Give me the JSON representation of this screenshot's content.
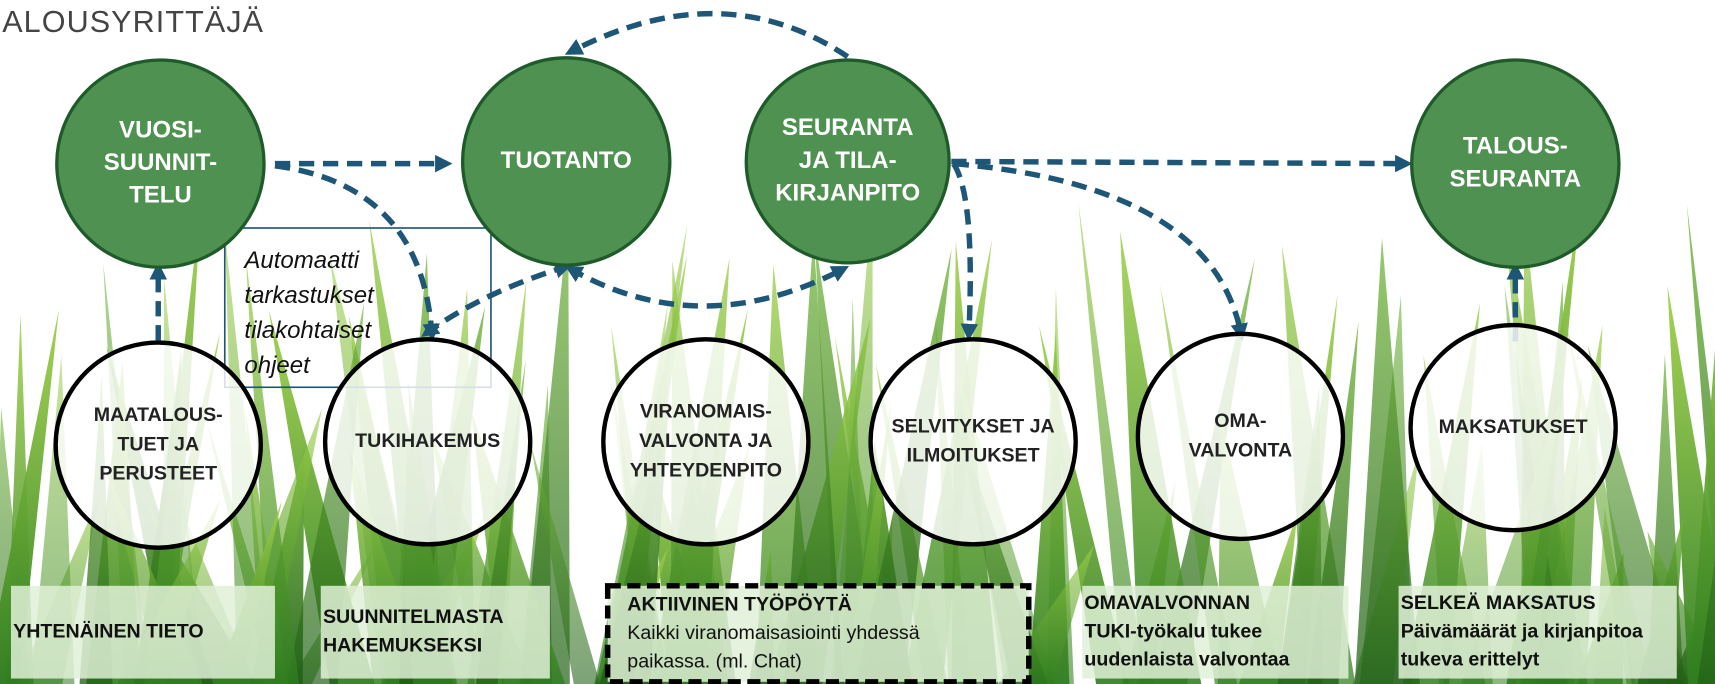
{
  "header": {
    "title": "ALOUSYRITTÄJÄ"
  },
  "process_nodes": [
    {
      "lines": [
        "VUOSI-",
        "SUUNNIT-",
        "TELU"
      ]
    },
    {
      "lines": [
        "TUOTANTO"
      ]
    },
    {
      "lines": [
        "SEURANTA",
        "JA TILA-",
        "KIRJANPITO"
      ]
    },
    {
      "lines": [
        "TALOUS-",
        "SEURANTA"
      ]
    }
  ],
  "service_nodes": [
    {
      "lines": [
        "MAATALOUS-",
        "TUET JA",
        "PERUSTEET"
      ]
    },
    {
      "lines": [
        "TUKIHAKEMUS"
      ]
    },
    {
      "lines": [
        "VIRANOMAIS-",
        "VALVONTA JA",
        "YHTEYDENPITO"
      ]
    },
    {
      "lines": [
        "SELVITYKSET JA",
        "ILMOITUKSET"
      ]
    },
    {
      "lines": [
        "OMA-",
        "VALVONTA"
      ]
    },
    {
      "lines": [
        "MAKSATUKSET"
      ]
    }
  ],
  "note": {
    "lines": [
      "Automaatti",
      "tarkastukset",
      "tilakohtaiset",
      "ohjeet"
    ]
  },
  "benefit_boxes": [
    {
      "heading": [
        "YHTENÄINEN TIETO"
      ]
    },
    {
      "heading": [
        "SUUNNITELMASTA",
        "HAKEMUKSEKSI"
      ]
    },
    {
      "heading": [
        "AKTIIVINEN TYÖPÖYTÄ"
      ],
      "text": [
        "Kaikki viranomaisasiointi yhdessä",
        "paikassa. (ml. Chat)"
      ]
    },
    {
      "heading": [
        "OMAVALVONNAN",
        "TUKI-työkalu tukee",
        "uudenlaista valvontaa"
      ]
    },
    {
      "heading": [
        "SELKEÄ MAKSATUS",
        "Päivämäärät ja kirjanpitoa",
        "tukeva erittelyt"
      ]
    }
  ]
}
